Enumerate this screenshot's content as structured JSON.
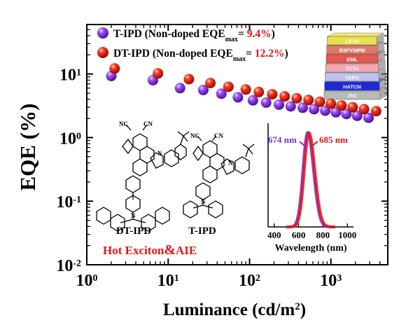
{
  "chart_data": {
    "type": "scatter",
    "title": "",
    "xlabel": "Luminance (cd/m",
    "xlabel_sup": "2",
    "xlabel_end": ")",
    "ylabel": "EQE (%)",
    "xscale": "log",
    "yscale": "log",
    "xlim": [
      1,
      5000
    ],
    "ylim": [
      0.01,
      60
    ],
    "x_tick_labels": [
      {
        "base": "10",
        "exp": "0"
      },
      {
        "base": "10",
        "exp": "1"
      },
      {
        "base": "10",
        "exp": "2"
      },
      {
        "base": "10",
        "exp": "3"
      }
    ],
    "y_tick_labels": [
      {
        "base": "10",
        "exp": "-2"
      },
      {
        "base": "10",
        "exp": "-1"
      },
      {
        "base": "10",
        "exp": "0"
      },
      {
        "base": "10",
        "exp": "1"
      }
    ],
    "legend_position": "top-left",
    "series": [
      {
        "name": "T-IPD",
        "legend_pre": "T-IPD (Non-doped EQE",
        "legend_sub": "max",
        "legend_eq": "= ",
        "legend_value": "9.4%",
        "legend_close": ")",
        "color": "#7b2fd6",
        "points": [
          {
            "x": 2.0,
            "y": 9.3
          },
          {
            "x": 6.5,
            "y": 8.0
          },
          {
            "x": 14,
            "y": 6.0
          },
          {
            "x": 27,
            "y": 5.6
          },
          {
            "x": 45,
            "y": 4.9
          },
          {
            "x": 72,
            "y": 4.3
          },
          {
            "x": 110,
            "y": 3.85
          },
          {
            "x": 160,
            "y": 3.55
          },
          {
            "x": 230,
            "y": 3.3
          },
          {
            "x": 320,
            "y": 3.1
          },
          {
            "x": 450,
            "y": 2.95
          },
          {
            "x": 620,
            "y": 2.8
          },
          {
            "x": 850,
            "y": 2.65
          },
          {
            "x": 1150,
            "y": 2.5
          },
          {
            "x": 1550,
            "y": 2.35
          },
          {
            "x": 2100,
            "y": 2.2
          },
          {
            "x": 2900,
            "y": 2.05
          }
        ]
      },
      {
        "name": "DT-IPD",
        "legend_pre": "DT-IPD (Non-doped EQE",
        "legend_sub": "max",
        "legend_eq": "= ",
        "legend_value": "12.2%",
        "legend_close": ")",
        "color": "#e8140f",
        "points": [
          {
            "x": 2.2,
            "y": 12.2
          },
          {
            "x": 7.5,
            "y": 10.2
          },
          {
            "x": 18,
            "y": 8.3
          },
          {
            "x": 33,
            "y": 7.2
          },
          {
            "x": 55,
            "y": 6.3
          },
          {
            "x": 90,
            "y": 5.7
          },
          {
            "x": 130,
            "y": 5.2
          },
          {
            "x": 190,
            "y": 4.8
          },
          {
            "x": 270,
            "y": 4.45
          },
          {
            "x": 380,
            "y": 4.15
          },
          {
            "x": 530,
            "y": 3.9
          },
          {
            "x": 730,
            "y": 3.65
          },
          {
            "x": 1000,
            "y": 3.4
          },
          {
            "x": 1350,
            "y": 3.2
          },
          {
            "x": 1850,
            "y": 3.0
          },
          {
            "x": 2550,
            "y": 2.8
          },
          {
            "x": 3600,
            "y": 2.6
          }
        ]
      }
    ],
    "annotations": {
      "hot_exciton_text": "Hot Exciton",
      "amp_text": "&",
      "aie_text": "AIE",
      "molecule_left_label": "DT-IPD",
      "molecule_right_label": "T-IPD",
      "molecule_atom_label": "N",
      "nc_label": "NC",
      "cn_label": "CN"
    },
    "device_stack": {
      "layers": [
        {
          "label": "LiF/Al",
          "color": "#e8e04a"
        },
        {
          "label": "B3PYMPM",
          "color": "#e0786a"
        },
        {
          "label": "EML",
          "color": "#e2574f"
        },
        {
          "label": "TCTA",
          "color": "#f2a8b0"
        },
        {
          "label": "TAPC",
          "color": "#bfc0ee"
        },
        {
          "label": "HATCN",
          "color": "#1d2ad8"
        },
        {
          "label": "ITO",
          "color": "#b9b9b9"
        }
      ]
    },
    "inset": {
      "type": "line",
      "xlabel": "Wavelength (nm)",
      "x_ticks": [
        400,
        600,
        800,
        1000
      ],
      "xlim": [
        350,
        1050
      ],
      "ylim": [
        0,
        1.1
      ],
      "series": [
        {
          "name": "T-IPD",
          "peak_nm": 674,
          "label": "674 nm",
          "color": "#7b2fd6"
        },
        {
          "name": "DT-IPD",
          "peak_nm": 685,
          "label": "685 nm",
          "color": "#e8140f"
        }
      ]
    }
  }
}
